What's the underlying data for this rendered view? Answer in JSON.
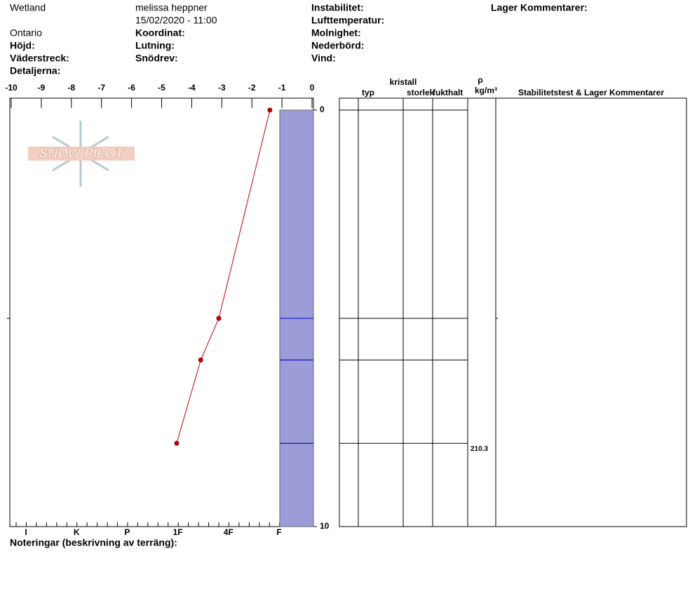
{
  "header": {
    "location": "Wetland",
    "observer": "melissa heppner",
    "datetime": "15/02/2020 - 11:00",
    "region": "Ontario",
    "labels": [
      "Höjd:",
      "Väderstreck:",
      "Detaljerna:",
      "Koordinat:",
      "Lutning:",
      "Snödrev:",
      "Instabilitet:",
      "Lufttemperatur:",
      "Molnighet:",
      "Nederbörd:",
      "Vind:",
      "Lager Kommentarer:"
    ]
  },
  "logo": "SNOW PILOT",
  "chart_data": {
    "type": "snow-profile",
    "xlim": [
      -10,
      0
    ],
    "xticks": [
      -10,
      -9,
      -8,
      -7,
      -6,
      -5,
      -4,
      -3,
      -2,
      -1,
      0
    ],
    "ylim": [
      0,
      10
    ],
    "yticks": [
      0,
      10
    ],
    "temperature": {
      "color": "#cc0000",
      "depth": [
        0,
        5,
        6,
        8
      ],
      "values": [
        -1.4,
        -3.1,
        -3.7,
        -4.5
      ]
    },
    "hardness_scale": [
      "I",
      "K",
      "P",
      "1F",
      "4F",
      "F"
    ],
    "layers": {
      "boundaries": [
        0,
        5,
        6,
        8,
        10
      ],
      "hardness": [
        "F",
        "F",
        "F",
        "F"
      ],
      "color": "#9c9cd8"
    }
  },
  "table": {
    "headers": {
      "crystal": "kristall",
      "type": "typ",
      "size": "storlek",
      "moisture": "fukthalt",
      "rho": "ρ",
      "rho_unit": "kg/m³",
      "comments": "Stabilitetstest & Lager Kommentarer"
    },
    "density": [
      null,
      null,
      null,
      210.3
    ]
  },
  "footer": "Noteringar (beskrivning av terräng):"
}
